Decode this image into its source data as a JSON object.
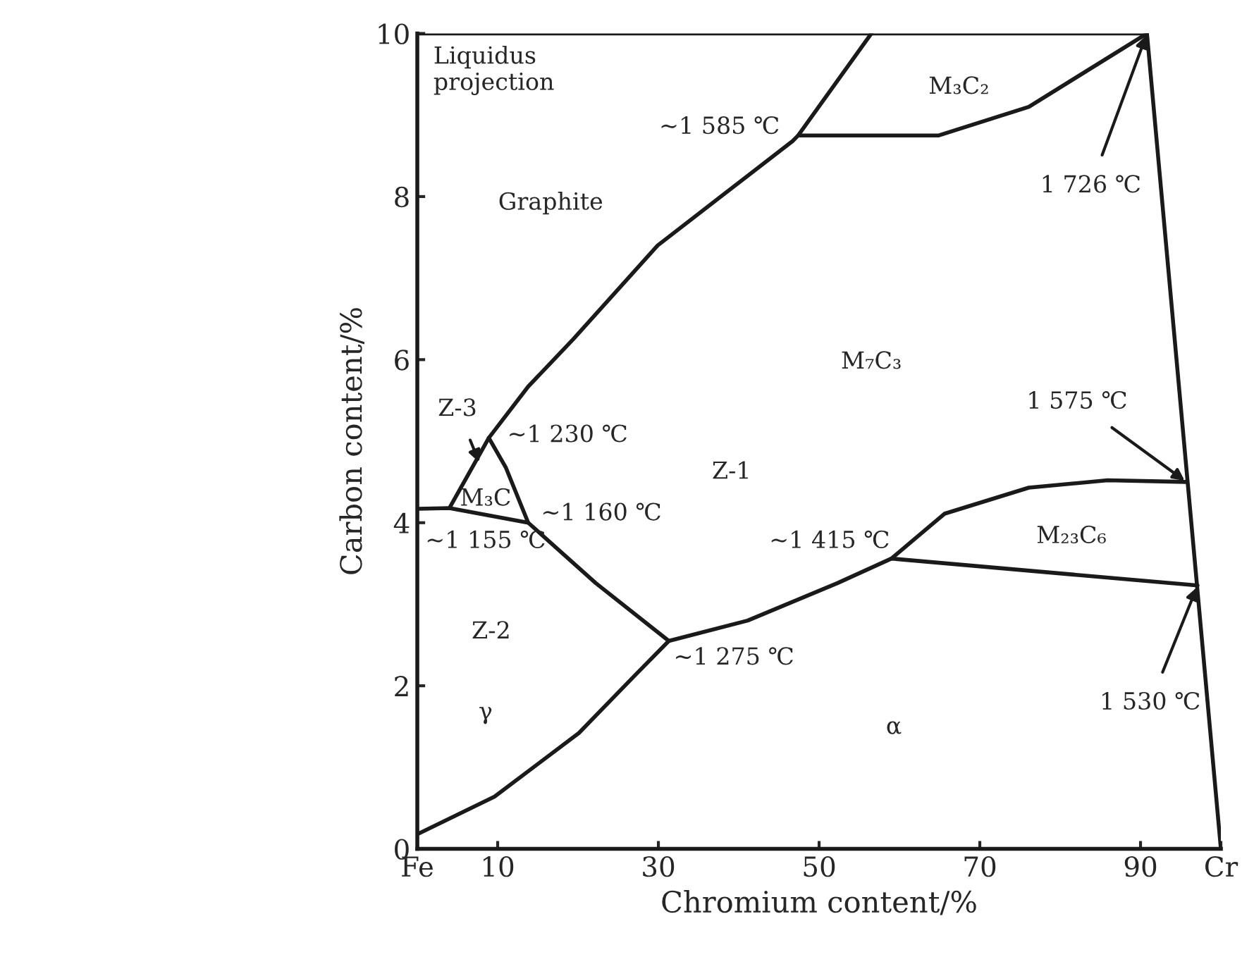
{
  "chart_data": {
    "type": "line",
    "title": "Liquidus\nprojection",
    "xlabel": "Chromium content/%",
    "ylabel": "Carbon content/%",
    "xlim": [
      0,
      100
    ],
    "ylim": [
      0,
      10
    ],
    "xticks": [
      {
        "value": 0,
        "label": "Fe"
      },
      10,
      30,
      50,
      70,
      90,
      {
        "value": 100,
        "label": "Cr"
      }
    ],
    "yticks": [
      0,
      2,
      4,
      6,
      8,
      10
    ],
    "grid": false,
    "marker": "none",
    "line_style": "solid",
    "series": [
      {
        "color": "#1a1a1a",
        "x": [
          0,
          90.8
        ],
        "values": [
          10,
          10
        ]
      },
      {
        "color": "#1a1a1a",
        "x": [
          90.8,
          100
        ],
        "values": [
          10,
          0
        ]
      },
      {
        "color": "#1a1a1a",
        "x": [
          4.0,
          8.9,
          13.8,
          19.4,
          29.9,
          46.7,
          47.4,
          56.5
        ],
        "values": [
          4.18,
          5.04,
          5.67,
          6.25,
          7.4,
          8.68,
          8.75,
          10
        ]
      },
      {
        "color": "#1a1a1a",
        "x": [
          0,
          4.0,
          13.8,
          22.2,
          31.3
        ],
        "values": [
          4.17,
          4.18,
          4.0,
          3.26,
          2.55
        ]
      },
      {
        "color": "#1a1a1a",
        "x": [
          8.9,
          11.0,
          13.8
        ],
        "values": [
          5.04,
          4.68,
          4.0
        ]
      },
      {
        "color": "#1a1a1a",
        "x": [
          0,
          9.6,
          20.1,
          27.1,
          31.3,
          41.1,
          52.3,
          59.0,
          65.6,
          76.1,
          85.9,
          95.7
        ],
        "values": [
          0.18,
          0.64,
          1.42,
          2.13,
          2.55,
          2.8,
          3.26,
          3.56,
          4.11,
          4.43,
          4.52,
          4.5
        ]
      },
      {
        "color": "#1a1a1a",
        "x": [
          59.0,
          97.1
        ],
        "values": [
          3.56,
          3.23
        ]
      },
      {
        "color": "#1a1a1a",
        "x": [
          47.4,
          64.9,
          76.1,
          90.8
        ],
        "values": [
          8.75,
          8.75,
          9.1,
          10
        ]
      }
    ],
    "annotations": [
      "Graphite",
      "M₃C₂",
      "M₇C₃",
      "Z-1",
      "M₃C",
      "Z-2",
      "γ",
      "α",
      "M₂₃C₆",
      {
        "text": "~1 585 ℃",
        "x": 47.4,
        "y": 8.75
      },
      {
        "text": "1 726 ℃",
        "x": 90.8,
        "y": 10
      },
      {
        "text": "1 575 ℃",
        "x": 95.7,
        "y": 4.5
      },
      {
        "text": "1 530 ℃",
        "x": 97.1,
        "y": 3.23
      },
      {
        "text": "~1 230 ℃",
        "x": 8.9,
        "y": 5.04
      },
      {
        "text": "~1 160 ℃",
        "x": 13.8,
        "y": 4.0
      },
      {
        "text": "~1 155 ℃",
        "x": 4.0,
        "y": 4.18
      },
      {
        "text": "~1 415 ℃",
        "x": 59.0,
        "y": 3.56
      },
      {
        "text": "~1 275 ℃",
        "x": 31.3,
        "y": 2.55
      },
      {
        "text": "Z-3",
        "x": 7.8,
        "y": 4.72
      }
    ]
  }
}
